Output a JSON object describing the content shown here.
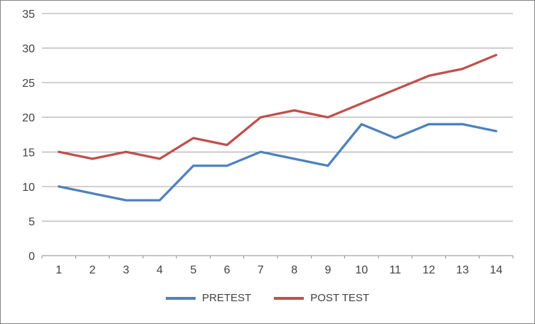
{
  "chart_data": {
    "type": "line",
    "title": "",
    "xlabel": "",
    "ylabel": "",
    "categories": [
      "1",
      "2",
      "3",
      "4",
      "5",
      "6",
      "7",
      "8",
      "9",
      "10",
      "11",
      "12",
      "13",
      "14"
    ],
    "series": [
      {
        "name": "PRETEST",
        "color": "#4F81BD",
        "values": [
          10,
          9,
          8,
          8,
          13,
          13,
          15,
          14,
          13,
          19,
          17,
          19,
          19,
          18
        ]
      },
      {
        "name": "POST TEST",
        "color": "#C0504D",
        "values": [
          15,
          14,
          15,
          14,
          17,
          16,
          20,
          21,
          20,
          22,
          24,
          26,
          27,
          29
        ]
      }
    ],
    "ylim": [
      0,
      35
    ],
    "ytick_step": 5,
    "yticks": [
      "0",
      "5",
      "10",
      "15",
      "20",
      "25",
      "30",
      "35"
    ],
    "grid": true,
    "legend_position": "bottom"
  },
  "colors": {
    "grid": "#A3A3A3",
    "axis": "#8C8C8C",
    "text": "#404040",
    "border": "#848484",
    "background": "#FFFFFF"
  }
}
